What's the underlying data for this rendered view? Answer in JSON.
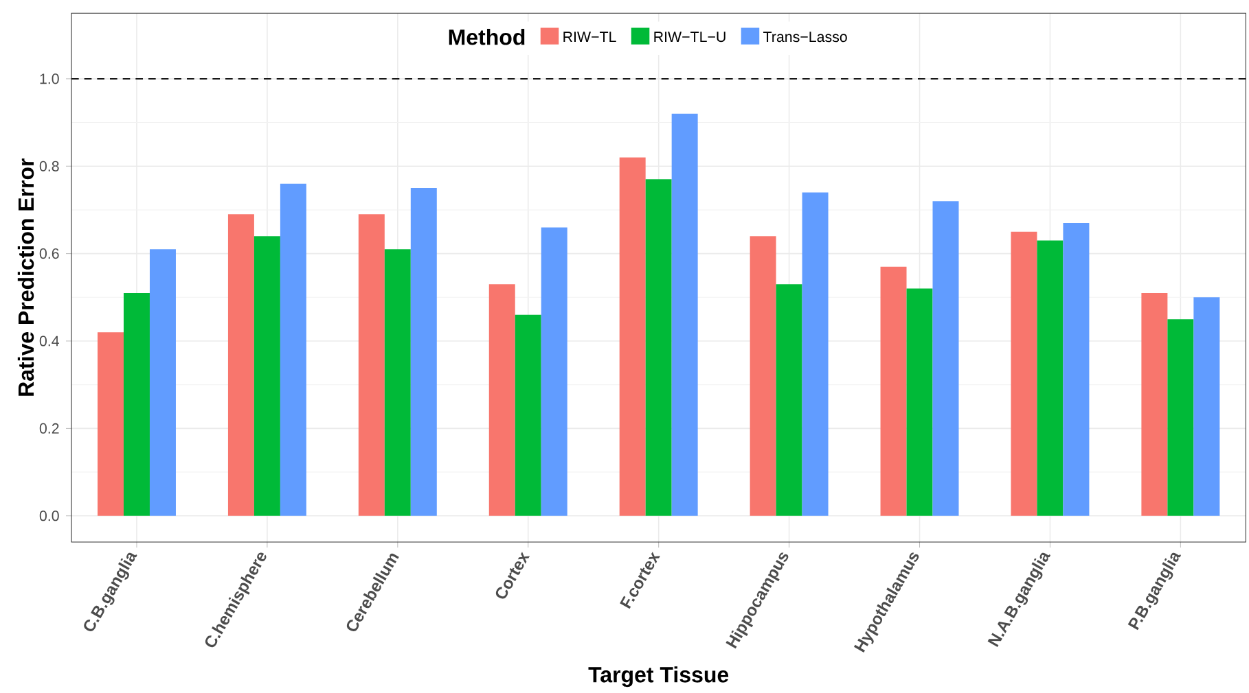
{
  "chart_data": {
    "type": "bar",
    "xlabel": "Target Tissue",
    "ylabel": "Rative Prediction Error",
    "legend_title": "Method",
    "legend": "top",
    "grid": true,
    "categories": [
      "C.B.ganglia",
      "C.hemisphere",
      "Cerebellum",
      "Cortex",
      "F.cortex",
      "Hippocampus",
      "Hypothalamus",
      "N.A.B.ganglia",
      "P.B.ganglia"
    ],
    "series": [
      {
        "name": "RIW−TL",
        "color": "#f8766d",
        "values": [
          0.42,
          0.69,
          0.69,
          0.53,
          0.82,
          0.64,
          0.57,
          0.65,
          0.51
        ]
      },
      {
        "name": "RIW−TL−U",
        "color": "#00ba38",
        "values": [
          0.51,
          0.64,
          0.61,
          0.46,
          0.77,
          0.53,
          0.52,
          0.63,
          0.45
        ]
      },
      {
        "name": "Trans−Lasso",
        "color": "#619cff",
        "values": [
          0.61,
          0.76,
          0.75,
          0.66,
          0.92,
          0.74,
          0.72,
          0.67,
          0.5
        ]
      }
    ],
    "ylim": [
      -0.06,
      1.15
    ],
    "yticks": [
      {
        "value": 0,
        "label": "0.0"
      },
      {
        "value": 0.2,
        "label": "0.2"
      },
      {
        "value": 0.4,
        "label": "0.4"
      },
      {
        "value": 0.6,
        "label": "0.6"
      },
      {
        "value": 0.8,
        "label": "0.8"
      },
      {
        "value": 1,
        "label": "1.0"
      }
    ],
    "ref_lines": [
      {
        "axis": "y",
        "value": 1,
        "line_style": "dashed",
        "color": "#000000"
      }
    ]
  }
}
